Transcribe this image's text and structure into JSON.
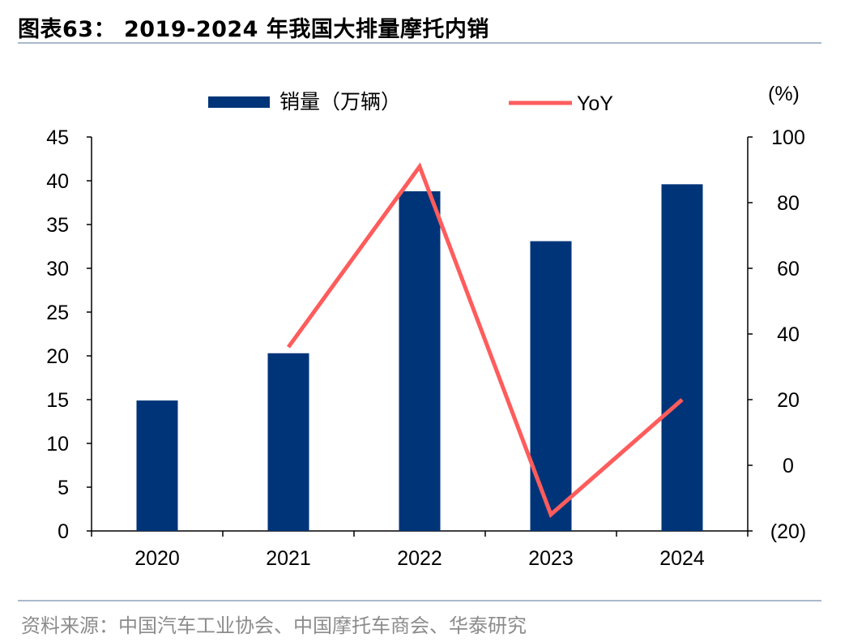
{
  "title": "图表63： 2019-2024 年我国大排量摩托内销",
  "source": "资料来源：中国汽车工业协会、中国摩托车商会、华泰研究",
  "chart_data": {
    "type": "bar",
    "categories": [
      "2020",
      "2021",
      "2022",
      "2023",
      "2024"
    ],
    "series": [
      {
        "name": "销量（万辆）",
        "type": "bar",
        "axis": "left",
        "color": "#003478",
        "values": [
          14.9,
          20.3,
          38.8,
          33.1,
          39.6
        ]
      },
      {
        "name": "YoY",
        "type": "line",
        "axis": "right",
        "color": "#ff5c5c",
        "values": [
          null,
          36,
          91,
          -15,
          20
        ]
      }
    ],
    "y_left": {
      "min": 0,
      "max": 45,
      "step": 5,
      "ticks": [
        "0",
        "5",
        "10",
        "15",
        "20",
        "25",
        "30",
        "35",
        "40",
        "45"
      ]
    },
    "y_right": {
      "min": -20,
      "max": 100,
      "step": 20,
      "unit_label": "(%)",
      "ticks": [
        "(20)",
        "0",
        "20",
        "40",
        "60",
        "80",
        "100"
      ]
    },
    "legend": "top",
    "grid": false
  }
}
